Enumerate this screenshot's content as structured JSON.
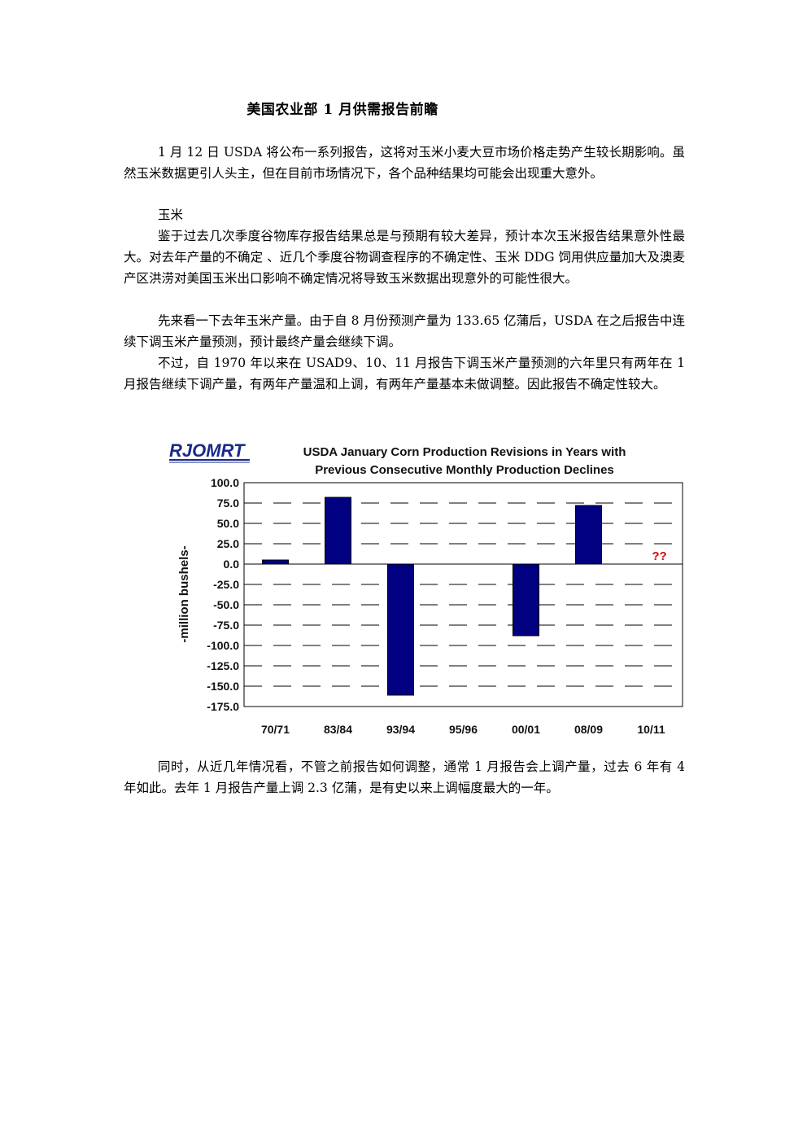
{
  "document": {
    "title": "美国农业部 1 月供需报告前瞻",
    "intro": "1 月 12 日 USDA 将公布一系列报告，这将对玉米小麦大豆市场价格走势产生较长期影响。虽然玉米数据更引人头主，但在目前市场情况下，各个品种结果均可能会出现重大意外。",
    "section_heading": "玉米",
    "para1": "鉴于过去几次季度谷物库存报告结果总是与预期有较大差异，预计本次玉米报告结果意外性最大。对去年产量的不确定 、近几个季度谷物调查程序的不确定性、玉米 DDG 饲用供应量加大及澳麦产区洪涝对美国玉米出口影响不确定情况将导致玉米数据出现意外的可能性很大。",
    "para2": "先来看一下去年玉米产量。由于自 8 月份预测产量为 133.65 亿蒲后，USDA 在之后报告中连续下调玉米产量预测，预计最终产量会继续下调。",
    "para3": "不过，自 1970 年以来在 USAD9、10、11 月报告下调玉米产量预测的六年里只有两年在 1 月报告继续下调产量，有两年产量温和上调，有两年产量基本未做调整。因此报告不确定性较大。",
    "para4": "同时，从近几年情况看，不管之前报告如何调整，通常 1 月报告会上调产量，过去 6 年有 4 年如此。去年 1 月报告产量上调 2.3 亿蒲，是有史以来上调幅度最大的一年。"
  },
  "chart_data": {
    "type": "bar",
    "logo": "RJOMRT",
    "logo_sub": "",
    "title_line1": "USDA January Corn Production Revisions in Years with",
    "title_line2": "Previous Consecutive Monthly Production Declines",
    "ylabel": "-million bushels-",
    "xlabel": "",
    "categories": [
      "70/71",
      "83/84",
      "93/94",
      "95/96",
      "00/01",
      "08/09",
      "10/11"
    ],
    "values": [
      5,
      82,
      -161,
      0,
      -88,
      72,
      null
    ],
    "annotation": "??",
    "annotation_category": "10/11",
    "annotation_color": "#e00000",
    "bar_color": "#000080",
    "ylim": [
      -175,
      100
    ],
    "yticks": [
      "100.0",
      "75.0",
      "50.0",
      "25.0",
      "0.0",
      "-25.0",
      "-50.0",
      "-75.0",
      "-100.0",
      "-125.0",
      "-150.0",
      "-175.0"
    ],
    "grid": "dashed horizontal"
  }
}
